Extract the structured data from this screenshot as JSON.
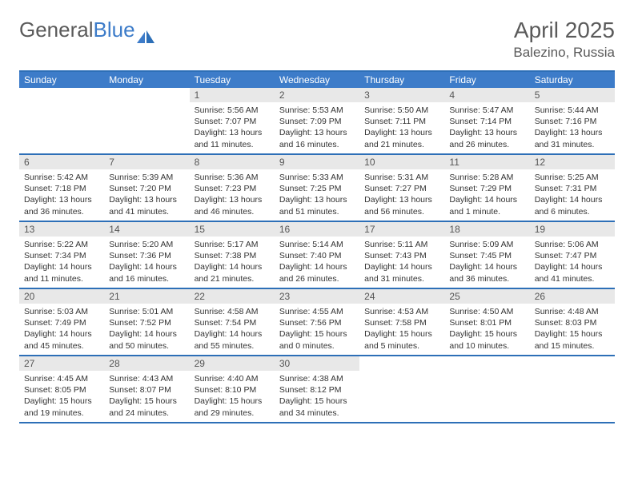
{
  "brand": {
    "part1": "General",
    "part2": "Blue"
  },
  "title": "April 2025",
  "location": "Balezino, Russia",
  "header_color": "#3d7cc9",
  "rule_color": "#2d6fb7",
  "daynum_bg": "#e8e8e8",
  "text_color": "#333333",
  "weekdays": [
    "Sunday",
    "Monday",
    "Tuesday",
    "Wednesday",
    "Thursday",
    "Friday",
    "Saturday"
  ],
  "weeks": [
    [
      null,
      null,
      {
        "n": "1",
        "sr": "5:56 AM",
        "ss": "7:07 PM",
        "dl": "13 hours and 11 minutes."
      },
      {
        "n": "2",
        "sr": "5:53 AM",
        "ss": "7:09 PM",
        "dl": "13 hours and 16 minutes."
      },
      {
        "n": "3",
        "sr": "5:50 AM",
        "ss": "7:11 PM",
        "dl": "13 hours and 21 minutes."
      },
      {
        "n": "4",
        "sr": "5:47 AM",
        "ss": "7:14 PM",
        "dl": "13 hours and 26 minutes."
      },
      {
        "n": "5",
        "sr": "5:44 AM",
        "ss": "7:16 PM",
        "dl": "13 hours and 31 minutes."
      }
    ],
    [
      {
        "n": "6",
        "sr": "5:42 AM",
        "ss": "7:18 PM",
        "dl": "13 hours and 36 minutes."
      },
      {
        "n": "7",
        "sr": "5:39 AM",
        "ss": "7:20 PM",
        "dl": "13 hours and 41 minutes."
      },
      {
        "n": "8",
        "sr": "5:36 AM",
        "ss": "7:23 PM",
        "dl": "13 hours and 46 minutes."
      },
      {
        "n": "9",
        "sr": "5:33 AM",
        "ss": "7:25 PM",
        "dl": "13 hours and 51 minutes."
      },
      {
        "n": "10",
        "sr": "5:31 AM",
        "ss": "7:27 PM",
        "dl": "13 hours and 56 minutes."
      },
      {
        "n": "11",
        "sr": "5:28 AM",
        "ss": "7:29 PM",
        "dl": "14 hours and 1 minute."
      },
      {
        "n": "12",
        "sr": "5:25 AM",
        "ss": "7:31 PM",
        "dl": "14 hours and 6 minutes."
      }
    ],
    [
      {
        "n": "13",
        "sr": "5:22 AM",
        "ss": "7:34 PM",
        "dl": "14 hours and 11 minutes."
      },
      {
        "n": "14",
        "sr": "5:20 AM",
        "ss": "7:36 PM",
        "dl": "14 hours and 16 minutes."
      },
      {
        "n": "15",
        "sr": "5:17 AM",
        "ss": "7:38 PM",
        "dl": "14 hours and 21 minutes."
      },
      {
        "n": "16",
        "sr": "5:14 AM",
        "ss": "7:40 PM",
        "dl": "14 hours and 26 minutes."
      },
      {
        "n": "17",
        "sr": "5:11 AM",
        "ss": "7:43 PM",
        "dl": "14 hours and 31 minutes."
      },
      {
        "n": "18",
        "sr": "5:09 AM",
        "ss": "7:45 PM",
        "dl": "14 hours and 36 minutes."
      },
      {
        "n": "19",
        "sr": "5:06 AM",
        "ss": "7:47 PM",
        "dl": "14 hours and 41 minutes."
      }
    ],
    [
      {
        "n": "20",
        "sr": "5:03 AM",
        "ss": "7:49 PM",
        "dl": "14 hours and 45 minutes."
      },
      {
        "n": "21",
        "sr": "5:01 AM",
        "ss": "7:52 PM",
        "dl": "14 hours and 50 minutes."
      },
      {
        "n": "22",
        "sr": "4:58 AM",
        "ss": "7:54 PM",
        "dl": "14 hours and 55 minutes."
      },
      {
        "n": "23",
        "sr": "4:55 AM",
        "ss": "7:56 PM",
        "dl": "15 hours and 0 minutes."
      },
      {
        "n": "24",
        "sr": "4:53 AM",
        "ss": "7:58 PM",
        "dl": "15 hours and 5 minutes."
      },
      {
        "n": "25",
        "sr": "4:50 AM",
        "ss": "8:01 PM",
        "dl": "15 hours and 10 minutes."
      },
      {
        "n": "26",
        "sr": "4:48 AM",
        "ss": "8:03 PM",
        "dl": "15 hours and 15 minutes."
      }
    ],
    [
      {
        "n": "27",
        "sr": "4:45 AM",
        "ss": "8:05 PM",
        "dl": "15 hours and 19 minutes."
      },
      {
        "n": "28",
        "sr": "4:43 AM",
        "ss": "8:07 PM",
        "dl": "15 hours and 24 minutes."
      },
      {
        "n": "29",
        "sr": "4:40 AM",
        "ss": "8:10 PM",
        "dl": "15 hours and 29 minutes."
      },
      {
        "n": "30",
        "sr": "4:38 AM",
        "ss": "8:12 PM",
        "dl": "15 hours and 34 minutes."
      },
      null,
      null,
      null
    ]
  ],
  "labels": {
    "sunrise": "Sunrise: ",
    "sunset": "Sunset: ",
    "daylight": "Daylight: "
  }
}
